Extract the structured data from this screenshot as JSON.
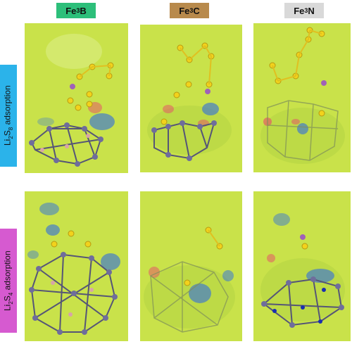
{
  "columns": [
    {
      "base": "Fe",
      "sub": "3",
      "suffix": "B",
      "color": "#2dbf7a"
    },
    {
      "base": "Fe",
      "sub": "3",
      "suffix": "C",
      "color": "#b88a4c"
    },
    {
      "base": "Fe",
      "sub": "3",
      "suffix": "N",
      "color": "#d9d9d9"
    }
  ],
  "rows": [
    {
      "pre": "Li",
      "sub1": "2",
      "mid": "S",
      "sub2": "8",
      "post": " adsorption",
      "color": "#2bb3ea"
    },
    {
      "pre": "Li",
      "sub1": "2",
      "mid": "S",
      "sub2": "4",
      "post": " adsorption",
      "color": "#d65ad0"
    }
  ],
  "colors": {
    "background_field": "#c9e24a",
    "depletion": "#2e6de0",
    "accumulation": "#e84a6a",
    "sulfur": "#f2d21c",
    "iron": "#6f6d9c",
    "boron": "#d8a4a8",
    "nitrogen": "#1a2fb0",
    "lithium": "#a061b8"
  }
}
